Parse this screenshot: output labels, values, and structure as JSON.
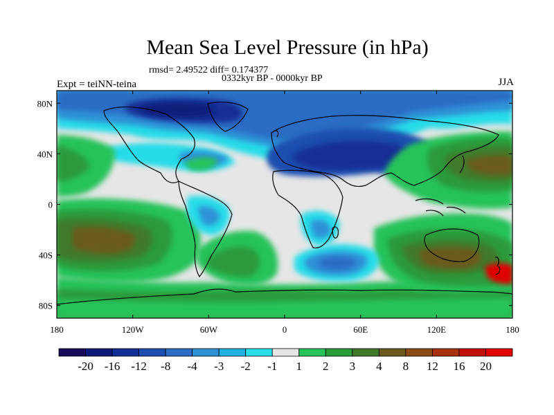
{
  "title": "Mean Sea Level Pressure (in hPa)",
  "stats": "rmsd= 2.49522 diff= 0.174377",
  "period": "0332kyr BP - 0000kyr BP",
  "experiment": "Expt = teiNN-teina",
  "season": "JJA",
  "axes": {
    "y_ticks": [
      "80N",
      "40N",
      "0",
      "40S",
      "80S"
    ],
    "x_ticks": [
      "180",
      "120W",
      "60W",
      "0",
      "60E",
      "120E",
      "180"
    ]
  },
  "colorbar": {
    "labels": [
      "-20",
      "-16",
      "-12",
      "-8",
      "-4",
      "-3",
      "-2",
      "-1",
      "1",
      "2",
      "3",
      "4",
      "8",
      "12",
      "16",
      "20"
    ],
    "colors": [
      "#1a0a5a",
      "#0f1a78",
      "#142f96",
      "#1c4db0",
      "#2b6cc4",
      "#2e91d6",
      "#21b2e0",
      "#28dce8",
      "#e6e6e6",
      "#27c25a",
      "#2a9a3a",
      "#3f7a2a",
      "#6a5a1e",
      "#8a4a14",
      "#a8300e",
      "#c00f08",
      "#e00000"
    ]
  }
}
